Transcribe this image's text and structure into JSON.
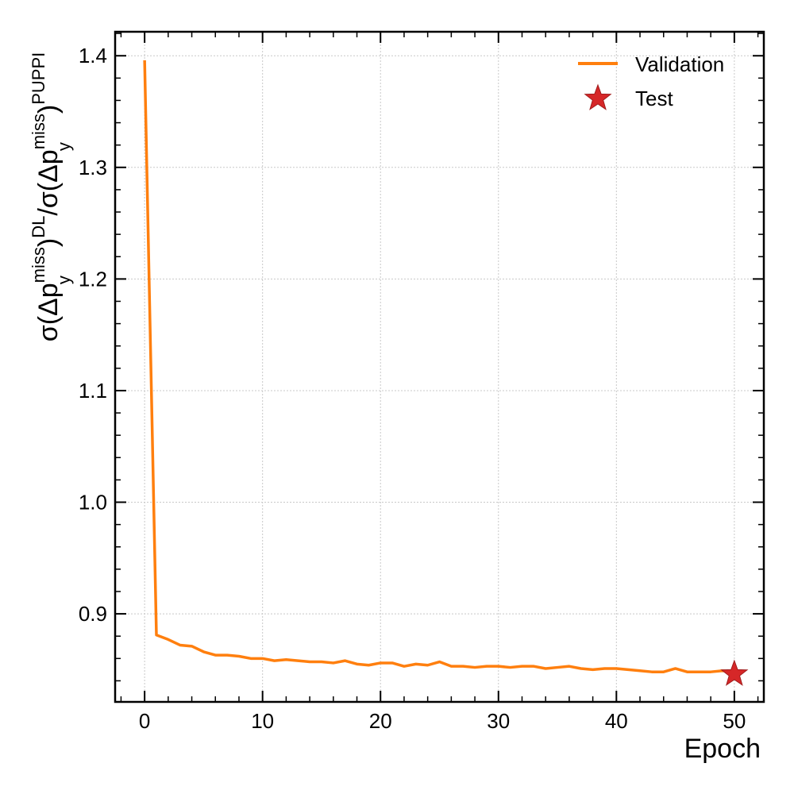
{
  "chart_data": {
    "type": "line",
    "title": "",
    "xlabel": "Epoch",
    "ylabel": {
      "pre": "σ(Δp",
      "sub": "y",
      "sup": "miss",
      "close1": ")",
      "sup_dl": "DL",
      "slash": "/σ(Δp",
      "sub2": "y",
      "sup2": "miss",
      "close2": ")",
      "sup_puppi": "PUPPI"
    },
    "xlim": [
      -2.5,
      52.5
    ],
    "ylim": [
      0.8211,
      1.4215
    ],
    "x_ticks": [
      "0",
      "10",
      "20",
      "30",
      "40",
      "50"
    ],
    "y_ticks": [
      "0.9",
      "1.0",
      "1.1",
      "1.2",
      "1.3",
      "1.4"
    ],
    "grid": true,
    "legend_position": "top-right",
    "series": [
      {
        "name": "Validation",
        "kind": "line",
        "color": "#ff7f0e",
        "x": [
          0,
          1,
          2,
          3,
          4,
          5,
          6,
          7,
          8,
          9,
          10,
          11,
          12,
          13,
          14,
          15,
          16,
          17,
          18,
          19,
          20,
          21,
          22,
          23,
          24,
          25,
          26,
          27,
          28,
          29,
          30,
          31,
          32,
          33,
          34,
          35,
          36,
          37,
          38,
          39,
          40,
          41,
          42,
          43,
          44,
          45,
          46,
          47,
          48,
          49,
          50
        ],
        "values": [
          1.396,
          0.881,
          0.877,
          0.872,
          0.871,
          0.866,
          0.863,
          0.863,
          0.862,
          0.86,
          0.86,
          0.858,
          0.859,
          0.858,
          0.857,
          0.857,
          0.856,
          0.858,
          0.855,
          0.854,
          0.856,
          0.856,
          0.853,
          0.855,
          0.854,
          0.857,
          0.853,
          0.853,
          0.852,
          0.853,
          0.853,
          0.852,
          0.853,
          0.853,
          0.851,
          0.852,
          0.853,
          0.851,
          0.85,
          0.851,
          0.851,
          0.85,
          0.849,
          0.848,
          0.848,
          0.851,
          0.848,
          0.848,
          0.848,
          0.849,
          0.848
        ]
      },
      {
        "name": "Test",
        "kind": "marker",
        "marker": "star",
        "color": "#d62728",
        "x": [
          50
        ],
        "values": [
          0.846
        ]
      }
    ]
  }
}
